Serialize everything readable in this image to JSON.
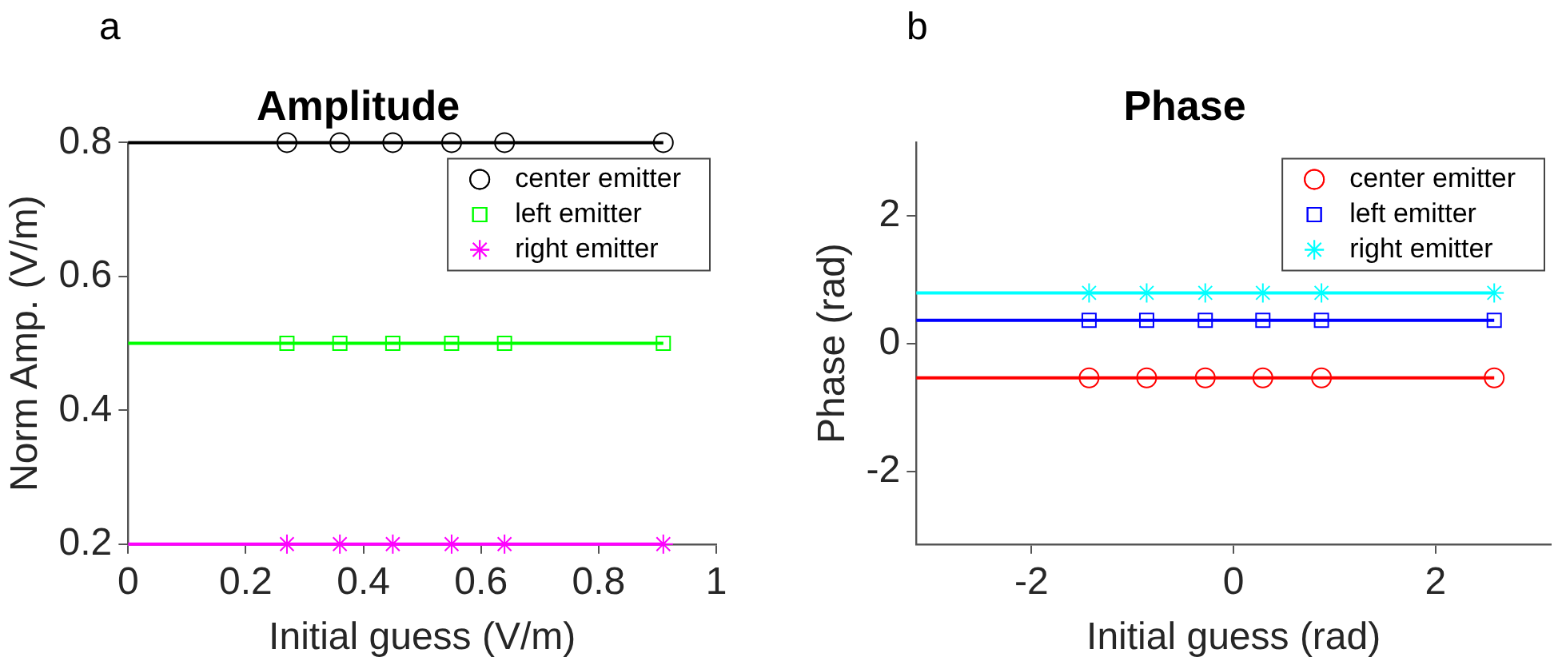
{
  "chart_data": [
    {
      "type": "line",
      "title": "Amplitude",
      "xlabel": "Initial guess (V/m)",
      "ylabel": "Norm Amp. (V/m)",
      "annotations": [
        "a"
      ],
      "xlim": [
        0,
        1
      ],
      "xticks": [
        0,
        0.2,
        0.4,
        0.6,
        0.8,
        1
      ],
      "ylim": [
        0.2,
        0.8
      ],
      "yticks": [
        0.2,
        0.4,
        0.6,
        0.8
      ],
      "grid": false,
      "legend": "top right",
      "series": [
        {
          "type": "line",
          "color": "#000000",
          "x": [
            0,
            0.91
          ],
          "values": [
            0.8,
            0.8
          ],
          "marker": "none"
        },
        {
          "type": "line",
          "color": "#00ff00",
          "x": [
            0,
            0.91
          ],
          "values": [
            0.5,
            0.5
          ],
          "marker": "none"
        },
        {
          "type": "line",
          "color": "#ff00ff",
          "x": [
            0,
            0.91
          ],
          "values": [
            0.2,
            0.2
          ],
          "marker": "none"
        },
        {
          "type": "scatter",
          "name": "center emitter",
          "color": "#000000",
          "x": [
            0.27,
            0.36,
            0.45,
            0.55,
            0.64,
            0.91
          ],
          "values": [
            0.8,
            0.8,
            0.8,
            0.8,
            0.8,
            0.8
          ],
          "marker": "circle"
        },
        {
          "type": "scatter",
          "name": "left emitter",
          "color": "#00ff00",
          "x": [
            0.27,
            0.36,
            0.45,
            0.55,
            0.64,
            0.91
          ],
          "values": [
            0.5,
            0.5,
            0.5,
            0.5,
            0.5,
            0.5
          ],
          "marker": "square"
        },
        {
          "type": "scatter",
          "name": "right emitter",
          "color": "#ff00ff",
          "x": [
            0.27,
            0.36,
            0.45,
            0.55,
            0.64,
            0.91
          ],
          "values": [
            0.2,
            0.2,
            0.2,
            0.2,
            0.2,
            0.2
          ],
          "marker": "cross"
        }
      ]
    },
    {
      "type": "line",
      "title": "Phase",
      "xlabel": "Initial guess (rad)",
      "ylabel": "Phase (rad)",
      "annotations": [
        "b"
      ],
      "xlim": [
        -3.14,
        3.14
      ],
      "xticks": [
        -2,
        0,
        2
      ],
      "ylim": [
        -3.14,
        3.14
      ],
      "yticks": [
        -2,
        0,
        2
      ],
      "grid": false,
      "legend": "top right",
      "series": [
        {
          "type": "line",
          "color": "#ff0000",
          "x": [
            -3.14,
            2.58
          ],
          "values": [
            -0.54,
            -0.54
          ],
          "marker": "none"
        },
        {
          "type": "line",
          "color": "#0000ff",
          "x": [
            -3.14,
            2.58
          ],
          "values": [
            0.36,
            0.36
          ],
          "marker": "none"
        },
        {
          "type": "line",
          "color": "#00ffff",
          "x": [
            -3.14,
            2.58
          ],
          "values": [
            0.79,
            0.79
          ],
          "marker": "none"
        },
        {
          "type": "scatter",
          "name": "center emitter",
          "color": "#ff0000",
          "x": [
            -1.43,
            -0.86,
            -0.28,
            0.29,
            0.87,
            2.58
          ],
          "values": [
            -0.54,
            -0.54,
            -0.54,
            -0.54,
            -0.54,
            -0.54
          ],
          "marker": "circle"
        },
        {
          "type": "scatter",
          "name": "left emitter",
          "color": "#0000ff",
          "x": [
            -1.43,
            -0.86,
            -0.28,
            0.29,
            0.87,
            2.58
          ],
          "values": [
            0.36,
            0.36,
            0.36,
            0.36,
            0.36,
            0.36
          ],
          "marker": "square"
        },
        {
          "type": "scatter",
          "name": "right emitter",
          "color": "#00ffff",
          "x": [
            -1.43,
            -0.86,
            -0.28,
            0.29,
            0.87,
            2.58
          ],
          "values": [
            0.79,
            0.79,
            0.79,
            0.79,
            0.79,
            0.79
          ],
          "marker": "cross"
        }
      ]
    }
  ]
}
